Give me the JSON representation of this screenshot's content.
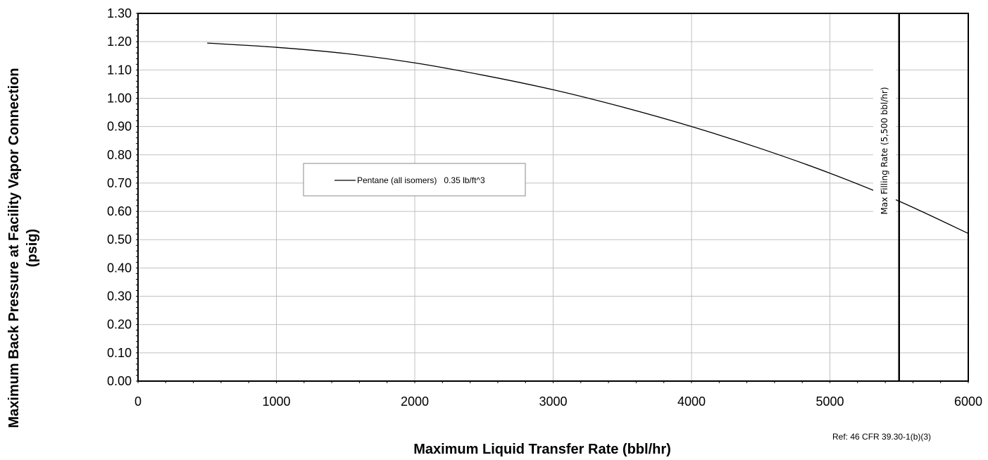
{
  "chart_data": {
    "type": "line",
    "title": "",
    "xlabel": "Maximum Liquid Transfer Rate (bbl/hr)",
    "ylabel_lines": [
      "Maximum Back Pressure at Facility Vapor Connection",
      "(psig)"
    ],
    "xlim": [
      0,
      6000
    ],
    "ylim": [
      0,
      1.3
    ],
    "grid": true,
    "x_ticks": [
      "0",
      "1000",
      "2000",
      "3000",
      "4000",
      "5000",
      "6000"
    ],
    "y_ticks": [
      "0.00",
      "0.10",
      "0.20",
      "0.30",
      "0.40",
      "0.50",
      "0.60",
      "0.70",
      "0.80",
      "0.90",
      "1.00",
      "1.10",
      "1.20",
      "1.30"
    ],
    "series": [
      {
        "name": "Pentane (all isomers)   0.35 lb/ft^3",
        "x": [
          500,
          1000,
          1500,
          2000,
          2500,
          3000,
          3500,
          4000,
          4500,
          5000,
          5500,
          6000
        ],
        "y": [
          1.195,
          1.18,
          1.158,
          1.125,
          1.081,
          1.03,
          0.969,
          0.9,
          0.822,
          0.735,
          0.636,
          0.522
        ]
      }
    ],
    "legend_position": "center-left",
    "annotations": [
      {
        "type": "vertical-line",
        "x": 5500,
        "label": "Max Filling Rate (5,500 bbl/hr)"
      }
    ],
    "reference": "Ref: 46 CFR 39.30-1(b)(3)"
  },
  "colors": {
    "line": "#000000",
    "grid": "#c0c0c0",
    "background": "#ffffff"
  }
}
